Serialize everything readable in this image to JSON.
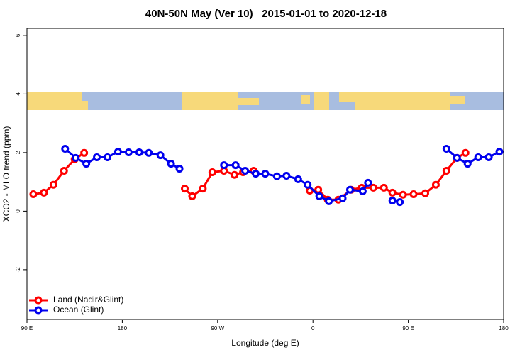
{
  "chart_data": {
    "type": "line",
    "title": "40N-50N May (Ver 10)   2015-01-01 to 2020-12-18",
    "x_label": "Longitude (deg E)",
    "y_label": "XCO2 - MLO trend (ppm)",
    "xlim": [
      90,
      540
    ],
    "xticks": [
      {
        "value": 90,
        "label": "90 E"
      },
      180,
      {
        "value": 270,
        "label": "90 W"
      },
      {
        "value": 360,
        "label": "0"
      },
      {
        "value": 450,
        "label": "90 E"
      },
      {
        "value": 540,
        "label": "180"
      }
    ],
    "ylim": [
      -3.7,
      6.24
    ],
    "yticks": [
      -2,
      0,
      2,
      4,
      6
    ],
    "legend": "bottom-left",
    "series": [
      {
        "name": "Land (Nadir&Glint)",
        "color": "#ff0000",
        "x": [
          96,
          106,
          115,
          125,
          135,
          144,
          null,
          239,
          246,
          256,
          265,
          276,
          286,
          294,
          304,
          null,
          357,
          365,
          374,
          384,
          396,
          406,
          417,
          427,
          435,
          445,
          455,
          466,
          476,
          486,
          496,
          504
        ],
        "values": [
          0.58,
          0.63,
          0.9,
          1.38,
          1.77,
          1.99,
          null,
          0.77,
          0.51,
          0.77,
          1.33,
          1.38,
          1.24,
          1.33,
          1.38,
          null,
          0.7,
          0.73,
          0.39,
          0.39,
          0.73,
          0.8,
          0.8,
          0.8,
          0.63,
          0.56,
          0.58,
          0.61,
          0.9,
          1.38,
          1.82,
          1.99
        ]
      },
      {
        "name": "Ocean (Glint)",
        "color": "#0000ee",
        "x": [
          126,
          136,
          146,
          156,
          166,
          176,
          186,
          196,
          205,
          216,
          226,
          234,
          null,
          276,
          287,
          296,
          306,
          315,
          326,
          335,
          346,
          355,
          366,
          375,
          388,
          395,
          407,
          412,
          null,
          435,
          442,
          null,
          486,
          496,
          506,
          516,
          526,
          536
        ],
        "values": [
          2.13,
          1.82,
          1.62,
          1.84,
          1.84,
          2.03,
          2.01,
          2.01,
          1.99,
          1.91,
          1.62,
          1.45,
          null,
          1.57,
          1.57,
          1.38,
          1.28,
          1.28,
          1.19,
          1.21,
          1.09,
          0.9,
          0.51,
          0.34,
          0.44,
          0.73,
          0.68,
          0.97,
          null,
          0.36,
          0.31,
          null,
          2.13,
          1.82,
          1.62,
          1.84,
          1.84,
          2.03
        ]
      }
    ]
  }
}
